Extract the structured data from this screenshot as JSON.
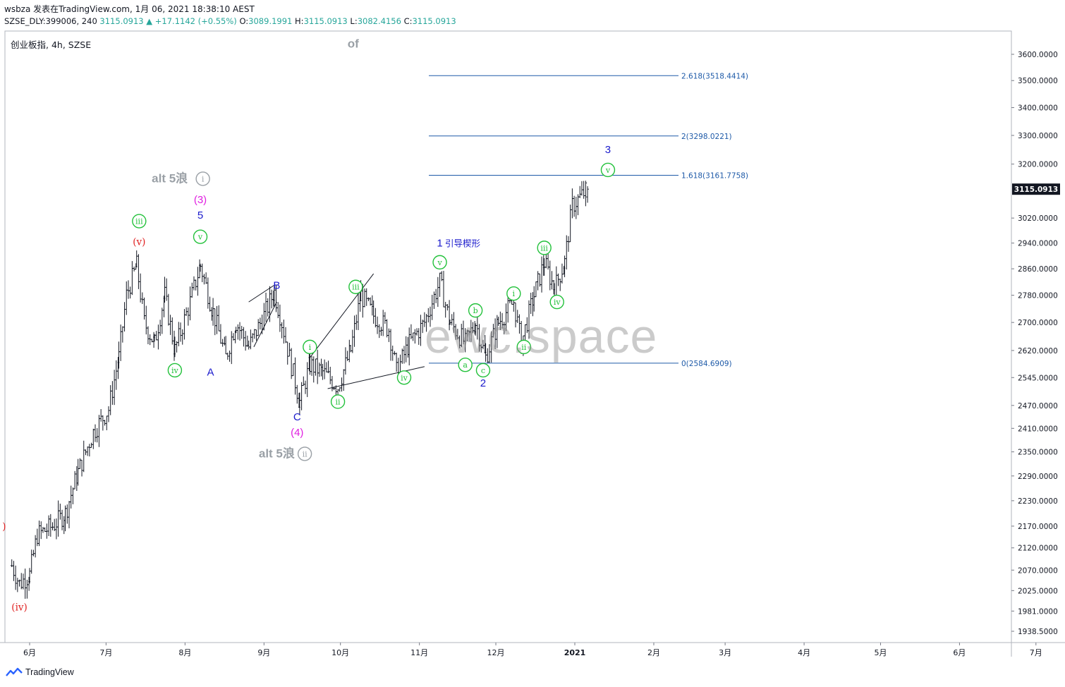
{
  "header": {
    "line1": "wsbza 发表在TradingView.com, 1月 06, 2021 18:38:10 AEST",
    "ticker": "SZSE_DLY:399006, 240",
    "last": "3115.0913",
    "change": "▲ +17.1142 (+0.55%)",
    "open_label": "O:",
    "open": "3089.1991",
    "high_label": "H:",
    "high": "3115.0913",
    "low_label": "L:",
    "low": "3082.4156",
    "close_label": "C:",
    "close": "3115.0913"
  },
  "symbol_title": "创业板指, 4h, SZSE",
  "watermark": "ewc.space",
  "footer_brand": "TradingView",
  "colors": {
    "green_wave": "#22c13a",
    "blue_wave": "#1a1acc",
    "magenta_wave": "#e01ee0",
    "red_wave": "#e02020",
    "gray_wave": "#9aa0a6",
    "fib_line": "#1e5aa8",
    "price_badge": "#131722"
  },
  "chart_data": {
    "type": "candlestick",
    "title": "创业板指, 4h, SZSE",
    "y_axis_ticks": [
      "3600.0000",
      "3500.0000",
      "3400.0000",
      "3300.0000",
      "3200.0000",
      "3115.0913",
      "3020.0000",
      "2940.0000",
      "2860.0000",
      "2780.0000",
      "2700.0000",
      "2620.0000",
      "2545.0000",
      "2470.0000",
      "2410.0000",
      "2350.0000",
      "2290.0000",
      "2230.0000",
      "2170.0000",
      "2120.0000",
      "2070.0000",
      "2025.0000",
      "1981.0000",
      "1938.5000"
    ],
    "x_axis_ticks": [
      "6月",
      "7月",
      "8月",
      "9月",
      "10月",
      "11月",
      "12月",
      "2021",
      "2月",
      "3月",
      "4月",
      "5月",
      "6月",
      "7月"
    ],
    "last_price": 3115.0913,
    "price_path": [
      {
        "date": "2020-05-25",
        "price": 2080
      },
      {
        "date": "2020-05-28",
        "price": 2040
      },
      {
        "date": "2020-06-01",
        "price": 2060
      },
      {
        "date": "2020-06-04",
        "price": 2150
      },
      {
        "date": "2020-06-10",
        "price": 2170
      },
      {
        "date": "2020-06-15",
        "price": 2200
      },
      {
        "date": "2020-06-20",
        "price": 2300
      },
      {
        "date": "2020-06-26",
        "price": 2400
      },
      {
        "date": "2020-07-02",
        "price": 2460
      },
      {
        "date": "2020-07-06",
        "price": 2600
      },
      {
        "date": "2020-07-09",
        "price": 2780
      },
      {
        "date": "2020-07-13",
        "price": 2870
      },
      {
        "date": "2020-07-16",
        "price": 2700
      },
      {
        "date": "2020-07-20",
        "price": 2640
      },
      {
        "date": "2020-07-24",
        "price": 2780
      },
      {
        "date": "2020-07-28",
        "price": 2620
      },
      {
        "date": "2020-08-03",
        "price": 2760
      },
      {
        "date": "2020-08-07",
        "price": 2870
      },
      {
        "date": "2020-08-12",
        "price": 2730
      },
      {
        "date": "2020-08-17",
        "price": 2600
      },
      {
        "date": "2020-08-21",
        "price": 2700
      },
      {
        "date": "2020-08-26",
        "price": 2630
      },
      {
        "date": "2020-09-01",
        "price": 2720
      },
      {
        "date": "2020-09-05",
        "price": 2790
      },
      {
        "date": "2020-09-08",
        "price": 2700
      },
      {
        "date": "2020-09-11",
        "price": 2600
      },
      {
        "date": "2020-09-15",
        "price": 2480
      },
      {
        "date": "2020-09-19",
        "price": 2580
      },
      {
        "date": "2020-09-24",
        "price": 2560
      },
      {
        "date": "2020-09-30",
        "price": 2520
      },
      {
        "date": "2020-10-05",
        "price": 2620
      },
      {
        "date": "2020-10-09",
        "price": 2780
      },
      {
        "date": "2020-10-14",
        "price": 2720
      },
      {
        "date": "2020-10-20",
        "price": 2680
      },
      {
        "date": "2020-10-23",
        "price": 2560
      },
      {
        "date": "2020-10-28",
        "price": 2640
      },
      {
        "date": "2020-11-03",
        "price": 2700
      },
      {
        "date": "2020-11-09",
        "price": 2820
      },
      {
        "date": "2020-11-13",
        "price": 2700
      },
      {
        "date": "2020-11-19",
        "price": 2640
      },
      {
        "date": "2020-11-23",
        "price": 2700
      },
      {
        "date": "2020-11-27",
        "price": 2600
      },
      {
        "date": "2020-12-02",
        "price": 2700
      },
      {
        "date": "2020-12-08",
        "price": 2760
      },
      {
        "date": "2020-12-11",
        "price": 2640
      },
      {
        "date": "2020-12-16",
        "price": 2780
      },
      {
        "date": "2020-12-20",
        "price": 2880
      },
      {
        "date": "2020-12-24",
        "price": 2800
      },
      {
        "date": "2020-12-28",
        "price": 2880
      },
      {
        "date": "2020-12-31",
        "price": 3060
      },
      {
        "date": "2021-01-06",
        "price": 3115
      }
    ],
    "fib_levels": [
      {
        "label": "2.618(3518.4414)",
        "value": 3518.4414
      },
      {
        "label": "2(3298.0221)",
        "value": 3298.0221
      },
      {
        "label": "1.618(3161.7758)",
        "value": 3161.7758
      },
      {
        "label": "0(2584.6909)",
        "value": 2584.6909
      }
    ],
    "wave_labels": [
      {
        "text": "(iv)",
        "date": "2020-05-28",
        "price": 1990,
        "style": "red"
      },
      {
        "text": ")",
        "date": "2020-05-22",
        "price": 2170,
        "style": "red"
      },
      {
        "text": "iii",
        "date": "2020-07-14",
        "price": 3010,
        "style": "green-circle"
      },
      {
        "text": "(v)",
        "date": "2020-07-14",
        "price": 2945,
        "style": "red"
      },
      {
        "text": "iv",
        "date": "2020-07-28",
        "price": 2565,
        "style": "green-circle"
      },
      {
        "text": "alt 5浪",
        "date": "2020-07-26",
        "price": 3150,
        "style": "gray"
      },
      {
        "text": "i",
        "date": "2020-08-08",
        "price": 3150,
        "style": "gray-circle"
      },
      {
        "text": "(3)",
        "date": "2020-08-07",
        "price": 3080,
        "style": "magenta"
      },
      {
        "text": "5",
        "date": "2020-08-07",
        "price": 3030,
        "style": "blue"
      },
      {
        "text": "v",
        "date": "2020-08-07",
        "price": 2960,
        "style": "green-circle"
      },
      {
        "text": "A",
        "date": "2020-08-11",
        "price": 2560,
        "style": "blue"
      },
      {
        "text": "B",
        "date": "2020-09-06",
        "price": 2810,
        "style": "blue"
      },
      {
        "text": "i",
        "date": "2020-09-19",
        "price": 2630,
        "style": "green-circle"
      },
      {
        "text": "C",
        "date": "2020-09-14",
        "price": 2440,
        "style": "blue"
      },
      {
        "text": "(4)",
        "date": "2020-09-14",
        "price": 2400,
        "style": "magenta"
      },
      {
        "text": "alt 5浪",
        "date": "2020-09-06",
        "price": 2345,
        "style": "gray"
      },
      {
        "text": "ii",
        "date": "2020-09-17",
        "price": 2345,
        "style": "gray-circle"
      },
      {
        "text": "iii",
        "date": "2020-10-07",
        "price": 2805,
        "style": "green-circle"
      },
      {
        "text": "ii",
        "date": "2020-09-30",
        "price": 2480,
        "style": "green-circle"
      },
      {
        "text": "iv",
        "date": "2020-10-26",
        "price": 2545,
        "style": "green-circle"
      },
      {
        "text": "1",
        "date": "2020-11-09",
        "price": 2940,
        "style": "blue"
      },
      {
        "text": "引导楔形",
        "date": "2020-11-18",
        "price": 2940,
        "style": "blue-small"
      },
      {
        "text": "v",
        "date": "2020-11-09",
        "price": 2880,
        "style": "green-circle"
      },
      {
        "text": "b",
        "date": "2020-11-23",
        "price": 2735,
        "style": "green-circle"
      },
      {
        "text": "a",
        "date": "2020-11-19",
        "price": 2580,
        "style": "green-circle"
      },
      {
        "text": "c",
        "date": "2020-11-26",
        "price": 2565,
        "style": "green-circle"
      },
      {
        "text": "2",
        "date": "2020-11-26",
        "price": 2530,
        "style": "blue"
      },
      {
        "text": "i",
        "date": "2020-12-08",
        "price": 2785,
        "style": "green-circle"
      },
      {
        "text": "ii",
        "date": "2020-12-12",
        "price": 2630,
        "style": "green-circle"
      },
      {
        "text": "iii",
        "date": "2020-12-20",
        "price": 2925,
        "style": "green-circle"
      },
      {
        "text": "iv",
        "date": "2020-12-25",
        "price": 2760,
        "style": "green-circle"
      },
      {
        "text": "3",
        "date": "2021-01-14",
        "price": 3250,
        "style": "blue"
      },
      {
        "text": "v",
        "date": "2021-01-14",
        "price": 3180,
        "style": "green-circle"
      },
      {
        "text": "of",
        "date": "2020-10-06",
        "price": 3640,
        "style": "gray"
      }
    ],
    "trendlines": [
      {
        "from": {
          "date": "2020-08-26",
          "price": 2760
        },
        "to": {
          "date": "2020-09-05",
          "price": 2810
        }
      },
      {
        "from": {
          "date": "2020-08-28",
          "price": 2630
        },
        "to": {
          "date": "2020-09-06",
          "price": 2760
        }
      },
      {
        "from": {
          "date": "2020-09-19",
          "price": 2600
        },
        "to": {
          "date": "2020-10-14",
          "price": 2845
        }
      },
      {
        "from": {
          "date": "2020-09-26",
          "price": 2515
        },
        "to": {
          "date": "2020-11-03",
          "price": 2575
        }
      }
    ]
  }
}
